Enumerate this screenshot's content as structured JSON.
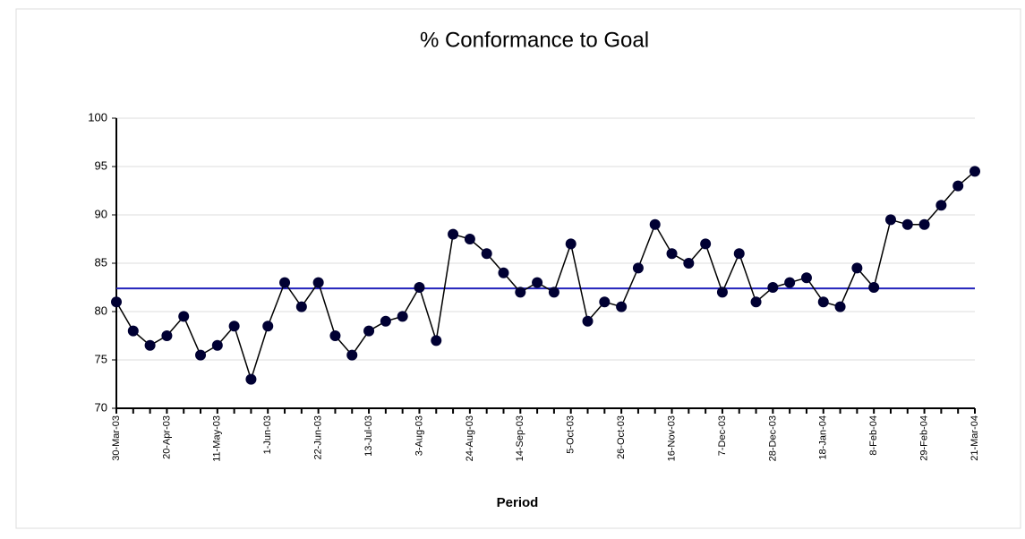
{
  "chart_data": {
    "type": "line",
    "title": "% Conformance to Goal",
    "x_label": "Period",
    "categories": [
      "30-Mar-03",
      null,
      null,
      "20-Apr-03",
      null,
      null,
      "11-May-03",
      null,
      null,
      "1-Jun-03",
      null,
      null,
      "22-Jun-03",
      null,
      null,
      "13-Jul-03",
      null,
      null,
      "3-Aug-03",
      null,
      null,
      "24-Aug-03",
      null,
      null,
      "14-Sep-03",
      null,
      null,
      "5-Oct-03",
      null,
      null,
      "26-Oct-03",
      null,
      null,
      "16-Nov-03",
      null,
      null,
      "7-Dec-03",
      null,
      null,
      "28-Dec-03",
      null,
      null,
      "18-Jan-04",
      null,
      null,
      "8-Feb-04",
      null,
      null,
      "29-Feb-04",
      null,
      null,
      "21-Mar-04"
    ],
    "values": [
      81,
      78,
      76.5,
      77.5,
      79.5,
      75.5,
      76.5,
      78.5,
      73,
      78.5,
      83,
      80.5,
      83,
      77.5,
      75.5,
      78,
      79,
      79.5,
      82.5,
      77,
      88,
      87.5,
      86,
      84,
      82,
      83,
      82,
      87,
      79,
      81,
      80.5,
      84.5,
      89,
      86,
      85,
      87,
      82,
      86,
      81,
      82.5,
      83,
      83.5,
      81,
      80.5,
      84.5,
      82.5,
      89.5,
      89,
      89,
      91,
      93,
      94.5
    ],
    "color": "#000033",
    "goal": 82.4,
    "goal_color": "#2222bb",
    "ylim": [
      70,
      100
    ],
    "yticks": [
      70,
      75,
      80,
      85,
      90,
      95,
      100
    ],
    "grid": true
  }
}
